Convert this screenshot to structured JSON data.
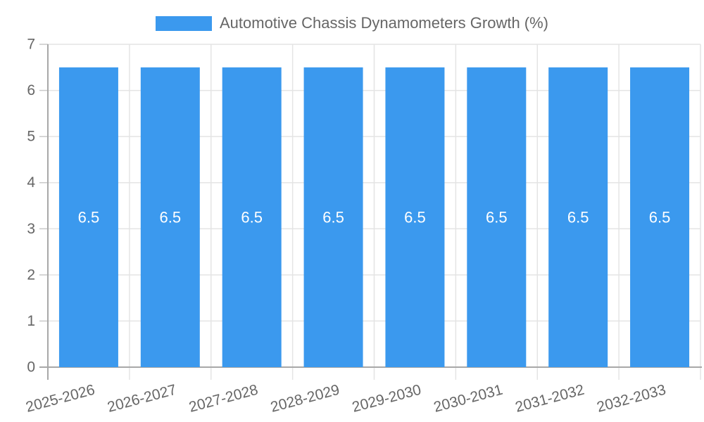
{
  "chart_data": {
    "type": "bar",
    "title": "Automotive Chassis Dynamometers Growth (%)",
    "categories": [
      "2025-2026",
      "2026-2027",
      "2027-2028",
      "2028-2029",
      "2029-2030",
      "2030-2031",
      "2031-2032",
      "2032-2033"
    ],
    "values": [
      6.5,
      6.5,
      6.5,
      6.5,
      6.5,
      6.5,
      6.5,
      6.5
    ],
    "value_labels": [
      "6.5",
      "6.5",
      "6.5",
      "6.5",
      "6.5",
      "6.5",
      "6.5",
      "6.5"
    ],
    "xlabel": "",
    "ylabel": "",
    "ylim": [
      0,
      7
    ],
    "yticks": [
      0,
      1,
      2,
      3,
      4,
      5,
      6,
      7
    ],
    "grid": "on",
    "legend_position": "top",
    "colors": {
      "bar": "#3b99ee",
      "grid": "#e4e4e4",
      "axis": "#a8a8a8",
      "tick": "#c9c9c9",
      "tick_text": "#666666",
      "value_label": "#ffffff",
      "legend_text": "#666666"
    }
  }
}
